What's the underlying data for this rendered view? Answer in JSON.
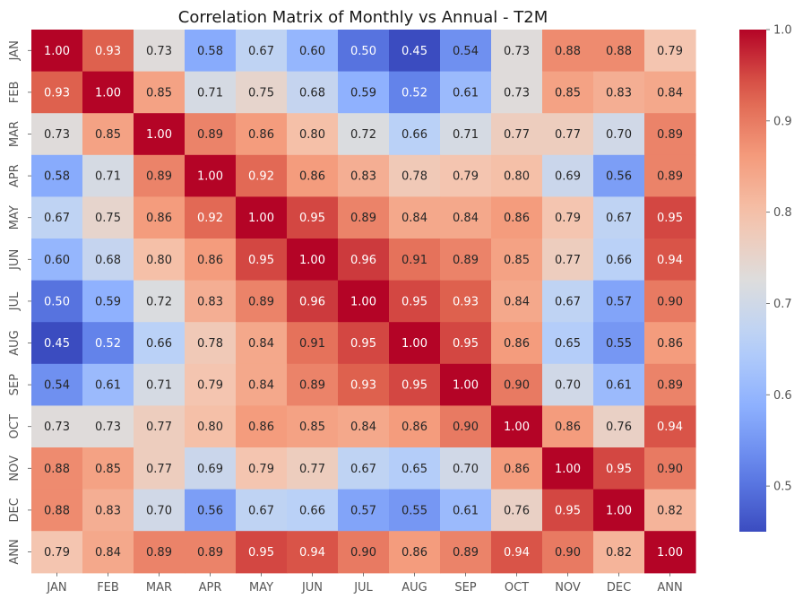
{
  "chart_data": {
    "type": "heatmap",
    "title": "Correlation Matrix of Monthly vs Annual - T2M",
    "xlabel": "",
    "ylabel": "",
    "x_categories": [
      "JAN",
      "FEB",
      "MAR",
      "APR",
      "MAY",
      "JUN",
      "JUL",
      "AUG",
      "SEP",
      "OCT",
      "NOV",
      "DEC",
      "ANN"
    ],
    "y_categories": [
      "JAN",
      "FEB",
      "MAR",
      "APR",
      "MAY",
      "JUN",
      "JUL",
      "AUG",
      "SEP",
      "OCT",
      "NOV",
      "DEC",
      "ANN"
    ],
    "values": [
      [
        1.0,
        0.93,
        0.73,
        0.58,
        0.67,
        0.6,
        0.5,
        0.45,
        0.54,
        0.73,
        0.88,
        0.88,
        0.79
      ],
      [
        0.93,
        1.0,
        0.85,
        0.71,
        0.75,
        0.68,
        0.59,
        0.52,
        0.61,
        0.73,
        0.85,
        0.83,
        0.84
      ],
      [
        0.73,
        0.85,
        1.0,
        0.89,
        0.86,
        0.8,
        0.72,
        0.66,
        0.71,
        0.77,
        0.77,
        0.7,
        0.89
      ],
      [
        0.58,
        0.71,
        0.89,
        1.0,
        0.92,
        0.86,
        0.83,
        0.78,
        0.79,
        0.8,
        0.69,
        0.56,
        0.89
      ],
      [
        0.67,
        0.75,
        0.86,
        0.92,
        1.0,
        0.95,
        0.89,
        0.84,
        0.84,
        0.86,
        0.79,
        0.67,
        0.95
      ],
      [
        0.6,
        0.68,
        0.8,
        0.86,
        0.95,
        1.0,
        0.96,
        0.91,
        0.89,
        0.85,
        0.77,
        0.66,
        0.94
      ],
      [
        0.5,
        0.59,
        0.72,
        0.83,
        0.89,
        0.96,
        1.0,
        0.95,
        0.93,
        0.84,
        0.67,
        0.57,
        0.9
      ],
      [
        0.45,
        0.52,
        0.66,
        0.78,
        0.84,
        0.91,
        0.95,
        1.0,
        0.95,
        0.86,
        0.65,
        0.55,
        0.86
      ],
      [
        0.54,
        0.61,
        0.71,
        0.79,
        0.84,
        0.89,
        0.93,
        0.95,
        1.0,
        0.9,
        0.7,
        0.61,
        0.89
      ],
      [
        0.73,
        0.73,
        0.77,
        0.8,
        0.86,
        0.85,
        0.84,
        0.86,
        0.9,
        1.0,
        0.86,
        0.76,
        0.94
      ],
      [
        0.88,
        0.85,
        0.77,
        0.69,
        0.79,
        0.77,
        0.67,
        0.65,
        0.7,
        0.86,
        1.0,
        0.95,
        0.9
      ],
      [
        0.88,
        0.83,
        0.7,
        0.56,
        0.67,
        0.66,
        0.57,
        0.55,
        0.61,
        0.76,
        0.95,
        1.0,
        0.82
      ],
      [
        0.79,
        0.84,
        0.89,
        0.89,
        0.95,
        0.94,
        0.9,
        0.86,
        0.89,
        0.94,
        0.9,
        0.82,
        1.0
      ]
    ],
    "colormap": "coolwarm",
    "vmin": 0.45,
    "vmax": 1.0,
    "colorbar_ticks": [
      0.5,
      0.6,
      0.7,
      0.8,
      0.9,
      1.0
    ],
    "colorbar_tick_labels": [
      "0.5",
      "0.6",
      "0.7",
      "0.8",
      "0.9",
      "1.0"
    ],
    "annotation_format": "0.00",
    "grid": false,
    "legend": "colorbar-right"
  },
  "colors": {
    "tick_label": "#555555",
    "title": "#1a1a1a",
    "annot_dark": "#262626",
    "annot_light": "#ffffff"
  }
}
